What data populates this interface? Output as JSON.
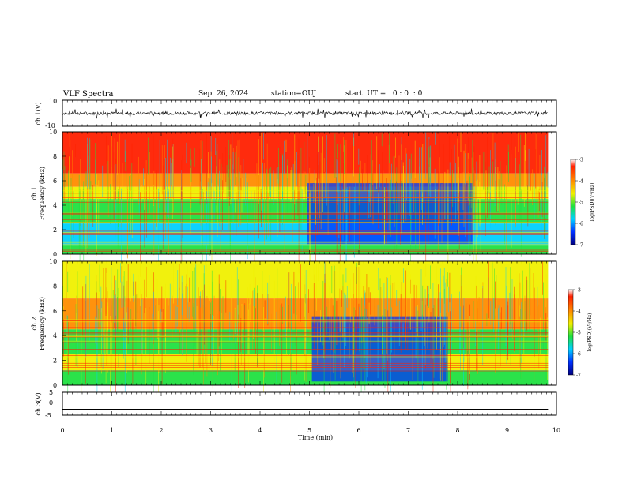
{
  "header": {
    "title": "VLF Spectra",
    "date": "Sep. 26, 2024",
    "station": "station=OUJ",
    "start": "start  UT =   0 : 0  : 0"
  },
  "chart_data": [
    {
      "type": "line",
      "name": "ch1-waveform",
      "ylabel": "ch.1(V)",
      "ylim": [
        -10,
        10
      ],
      "yticks": [
        "10",
        "-10"
      ],
      "xlim": [
        0,
        10
      ],
      "x_end": 9.83
    },
    {
      "type": "heatmap",
      "name": "ch1-spectrogram",
      "ylabel": [
        "ch.1",
        "Frequency  (kHz)"
      ],
      "ylim": [
        0,
        10
      ],
      "yticks": [
        "0",
        "2",
        "4",
        "6",
        "8",
        "10"
      ],
      "xlim": [
        0,
        10
      ],
      "x_end": 9.83,
      "colorbar": {
        "label": "log(PSD)(V²/Hz)",
        "range": [
          -7,
          -3
        ],
        "ticks": [
          "-3",
          "-4",
          "-5",
          "-6",
          "-7"
        ]
      }
    },
    {
      "type": "heatmap",
      "name": "ch2-spectrogram",
      "ylabel": [
        "ch.2",
        "Frequency  (kHz)"
      ],
      "ylim": [
        0,
        10
      ],
      "yticks": [
        "0",
        "2",
        "4",
        "6",
        "8",
        "10"
      ],
      "xlim": [
        0,
        10
      ],
      "x_end": 9.83,
      "colorbar": {
        "label": "log(PSD)(V²/Hz)",
        "range": [
          -7,
          -3
        ],
        "ticks": [
          "-3",
          "-4",
          "-5",
          "-6",
          "-7"
        ]
      }
    },
    {
      "type": "line",
      "name": "ch3-waveform",
      "ylabel": "ch.3(V)",
      "ylim": [
        -5,
        5
      ],
      "yticks": [
        "5",
        "0",
        "-5"
      ],
      "xlim": [
        0,
        10
      ],
      "x_end": 9.83,
      "value": -2.5,
      "xlabel": "Time  (min)",
      "xticks": [
        "0",
        "1",
        "2",
        "3",
        "4",
        "5",
        "6",
        "7",
        "8",
        "9",
        "10"
      ]
    }
  ],
  "colors": {
    "red": "#ff2000",
    "orange": "#ff8c00",
    "yellow": "#f0f000",
    "green": "#20e040",
    "cyan": "#00d0ff",
    "blue": "#0030ff",
    "navy": "#000080"
  }
}
